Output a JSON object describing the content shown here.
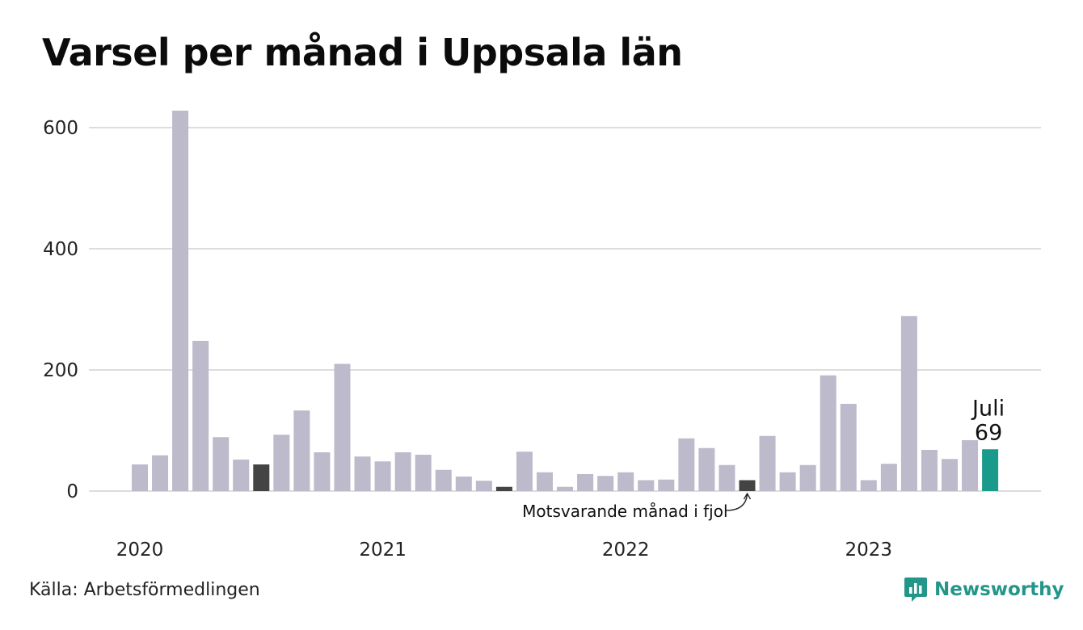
{
  "chart_data": {
    "type": "bar",
    "title": "Varsel per månad i Uppsala län",
    "ylim": [
      0,
      620
    ],
    "y_ticks": [
      "0",
      "200",
      "400",
      "600"
    ],
    "year_labels": [
      {
        "label": "2020",
        "index": 0
      },
      {
        "label": "2021",
        "index": 12
      },
      {
        "label": "2022",
        "index": 24
      },
      {
        "label": "2023",
        "index": 36
      }
    ],
    "categories": [
      "2020-01",
      "2020-02",
      "2020-03",
      "2020-04",
      "2020-05",
      "2020-06",
      "2020-07",
      "2020-08",
      "2020-09",
      "2020-10",
      "2020-11",
      "2020-12",
      "2021-01",
      "2021-02",
      "2021-03",
      "2021-04",
      "2021-05",
      "2021-06",
      "2021-07",
      "2021-08",
      "2021-09",
      "2021-10",
      "2021-11",
      "2021-12",
      "2022-01",
      "2022-02",
      "2022-03",
      "2022-04",
      "2022-05",
      "2022-06",
      "2022-07",
      "2022-08",
      "2022-09",
      "2022-10",
      "2022-11",
      "2022-12",
      "2023-01",
      "2023-02",
      "2023-03",
      "2023-04",
      "2023-05",
      "2023-06",
      "2023-07"
    ],
    "values": [
      44,
      59,
      628,
      248,
      89,
      52,
      44,
      93,
      133,
      64,
      210,
      57,
      49,
      64,
      60,
      35,
      24,
      17,
      7,
      65,
      31,
      7,
      28,
      25,
      31,
      18,
      19,
      87,
      71,
      43,
      18,
      91,
      31,
      43,
      191,
      144,
      18,
      45,
      289,
      68,
      53,
      84,
      69
    ],
    "bar_colors": {
      "default": "#bcbacb",
      "same_month_prev_years": "#444444",
      "current": "#1a9a8b"
    },
    "same_month_indices": [
      6,
      18,
      30
    ],
    "current_index": 42,
    "highlight_label": {
      "month": "Juli",
      "value": "69"
    },
    "annotation": "Motsvarande månad i fjol",
    "grid": true
  },
  "footer": {
    "source": "Källa: Arbetsförmedlingen",
    "brand": "Newsworthy"
  },
  "colors": {
    "brand": "#23968a",
    "grid": "#dddddd"
  }
}
